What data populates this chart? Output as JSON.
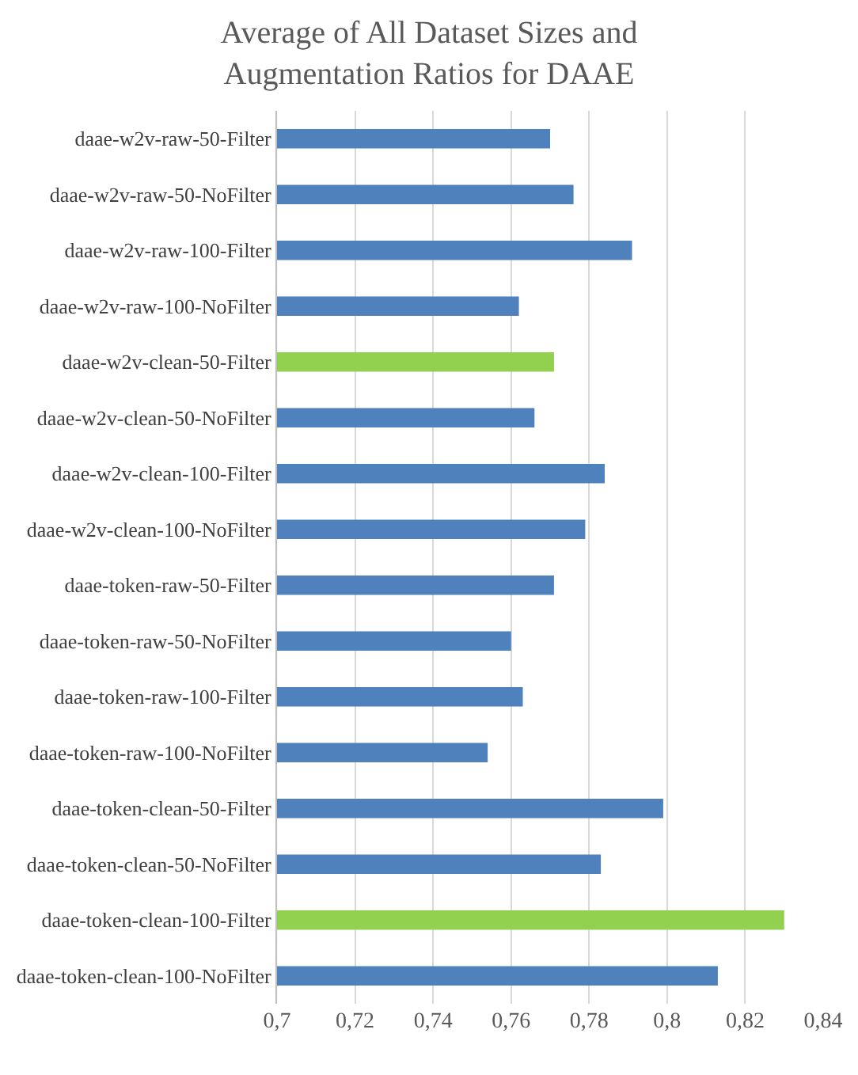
{
  "chart_data": {
    "type": "bar",
    "orientation": "horizontal",
    "title": "Average of All Dataset Sizes and\nAugmentation Ratios for DAAE",
    "categories": [
      "daae-w2v-raw-50-Filter",
      "daae-w2v-raw-50-NoFilter",
      "daae-w2v-raw-100-Filter",
      "daae-w2v-raw-100-NoFilter",
      "daae-w2v-clean-50-Filter",
      "daae-w2v-clean-50-NoFilter",
      "daae-w2v-clean-100-Filter",
      "daae-w2v-clean-100-NoFilter",
      "daae-token-raw-50-Filter",
      "daae-token-raw-50-NoFilter",
      "daae-token-raw-100-Filter",
      "daae-token-raw-100-NoFilter",
      "daae-token-clean-50-Filter",
      "daae-token-clean-50-NoFilter",
      "daae-token-clean-100-Filter",
      "daae-token-clean-100-NoFilter"
    ],
    "values": [
      0.77,
      0.776,
      0.791,
      0.762,
      0.771,
      0.766,
      0.784,
      0.779,
      0.771,
      0.76,
      0.763,
      0.754,
      0.799,
      0.783,
      0.83,
      0.813
    ],
    "colors": [
      "#4f81bd",
      "#4f81bd",
      "#4f81bd",
      "#4f81bd",
      "#92d050",
      "#4f81bd",
      "#4f81bd",
      "#4f81bd",
      "#4f81bd",
      "#4f81bd",
      "#4f81bd",
      "#4f81bd",
      "#4f81bd",
      "#4f81bd",
      "#92d050",
      "#4f81bd"
    ],
    "xlim": [
      0.7,
      0.84
    ],
    "xticks": [
      {
        "value": 0.7,
        "label": "0,7"
      },
      {
        "value": 0.72,
        "label": "0,72"
      },
      {
        "value": 0.74,
        "label": "0,74"
      },
      {
        "value": 0.76,
        "label": "0,76"
      },
      {
        "value": 0.78,
        "label": "0,78"
      },
      {
        "value": 0.8,
        "label": "0,8"
      },
      {
        "value": 0.82,
        "label": "0,82"
      },
      {
        "value": 0.84,
        "label": "0,84"
      }
    ],
    "grid": "x"
  }
}
